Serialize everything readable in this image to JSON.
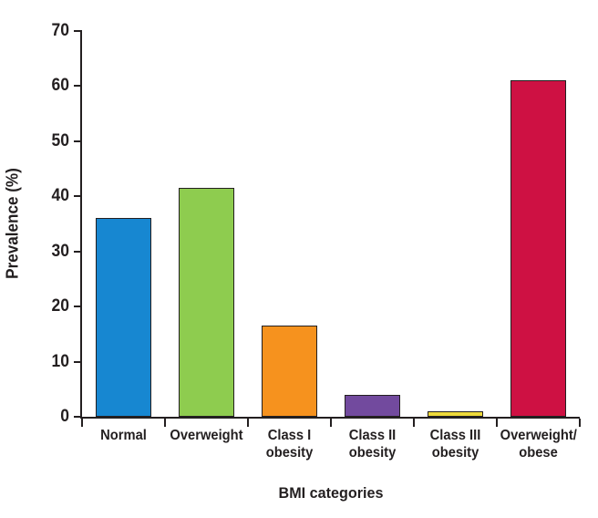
{
  "chart_data": {
    "type": "bar",
    "title": "",
    "xlabel": "BMI categories",
    "ylabel": "Prevalence (%)",
    "categories": [
      "Normal",
      "Overweight",
      "Class I\nobesity",
      "Class II\nobesity",
      "Class III\nobesity",
      "Overweight/\nobese"
    ],
    "values": [
      36,
      41.5,
      16.5,
      4,
      1,
      61
    ],
    "bar_colors": [
      "#1787d1",
      "#8ecc4f",
      "#f6921e",
      "#724a9e",
      "#eeda3a",
      "#ce1143"
    ],
    "bar_outline_color": "#231f20",
    "axis_color": "#231f20",
    "text_color": "#231f20",
    "background_color": "#ffffff",
    "ylim": [
      0,
      70
    ],
    "yticks": [
      0,
      10,
      20,
      30,
      40,
      50,
      60,
      70
    ],
    "grid": false,
    "legend": false
  }
}
